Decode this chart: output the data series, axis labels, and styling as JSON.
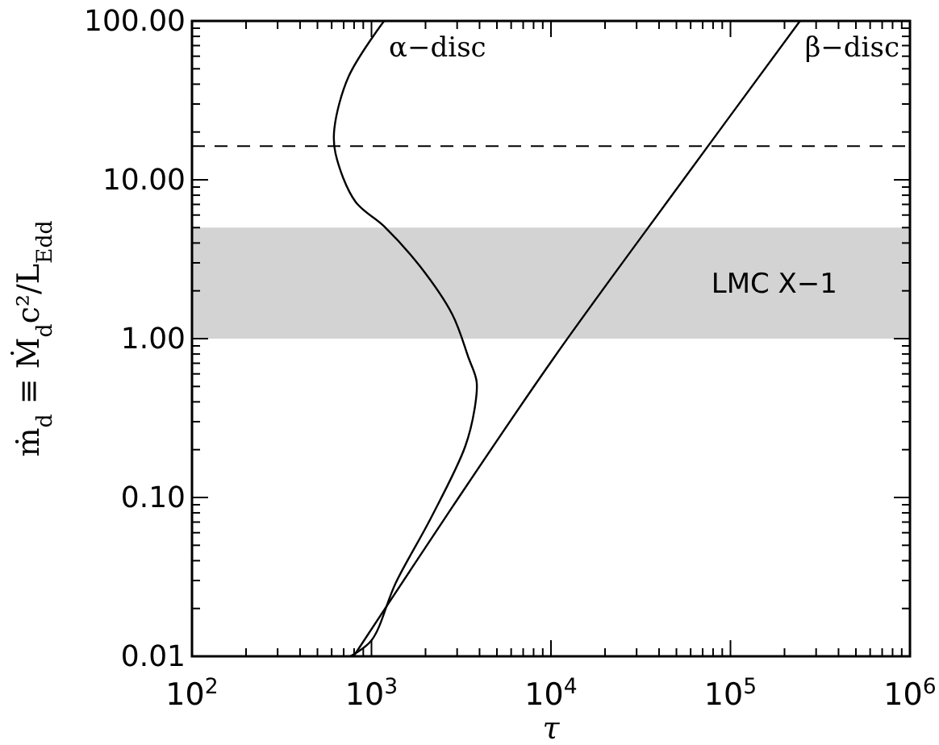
{
  "chart_data": {
    "type": "line",
    "xlabel": "τ",
    "ylabel": "ṁ$_{d}$ ≡ Ṁ$_{d}$c²/L$_{Edd}$",
    "log": "xy",
    "xlim": [
      100,
      1000000
    ],
    "ylim": [
      0.01,
      100
    ],
    "xticks": [
      {
        "value": 100,
        "label": "10$^{2}$"
      },
      {
        "value": 200,
        "label": null
      },
      {
        "value": 300,
        "label": null
      },
      {
        "value": 400,
        "label": null
      },
      {
        "value": 500,
        "label": null
      },
      {
        "value": 600,
        "label": null
      },
      {
        "value": 700,
        "label": null
      },
      {
        "value": 800,
        "label": null
      },
      {
        "value": 900,
        "label": null
      },
      {
        "value": 1000,
        "label": "10$^{3}$"
      },
      {
        "value": 2000,
        "label": null
      },
      {
        "value": 3000,
        "label": null
      },
      {
        "value": 4000,
        "label": null
      },
      {
        "value": 5000,
        "label": null
      },
      {
        "value": 6000,
        "label": null
      },
      {
        "value": 7000,
        "label": null
      },
      {
        "value": 8000,
        "label": null
      },
      {
        "value": 9000,
        "label": null
      },
      {
        "value": 10000,
        "label": "10$^{4}$"
      },
      {
        "value": 20000,
        "label": null
      },
      {
        "value": 30000,
        "label": null
      },
      {
        "value": 40000,
        "label": null
      },
      {
        "value": 50000,
        "label": null
      },
      {
        "value": 60000,
        "label": null
      },
      {
        "value": 70000,
        "label": null
      },
      {
        "value": 80000,
        "label": null
      },
      {
        "value": 90000,
        "label": null
      },
      {
        "value": 100000,
        "label": "10$^{5}$"
      },
      {
        "value": 200000,
        "label": null
      },
      {
        "value": 300000,
        "label": null
      },
      {
        "value": 400000,
        "label": null
      },
      {
        "value": 500000,
        "label": null
      },
      {
        "value": 600000,
        "label": null
      },
      {
        "value": 700000,
        "label": null
      },
      {
        "value": 800000,
        "label": null
      },
      {
        "value": 900000,
        "label": null
      },
      {
        "value": 1000000,
        "label": "10$^{6}$"
      }
    ],
    "yticks": [
      {
        "value": 0.01,
        "label": "0.01"
      },
      {
        "value": 0.02,
        "label": null
      },
      {
        "value": 0.03,
        "label": null
      },
      {
        "value": 0.04,
        "label": null
      },
      {
        "value": 0.05,
        "label": null
      },
      {
        "value": 0.06,
        "label": null
      },
      {
        "value": 0.07,
        "label": null
      },
      {
        "value": 0.08,
        "label": null
      },
      {
        "value": 0.09,
        "label": null
      },
      {
        "value": 0.1,
        "label": "0.10"
      },
      {
        "value": 0.2,
        "label": null
      },
      {
        "value": 0.3,
        "label": null
      },
      {
        "value": 0.4,
        "label": null
      },
      {
        "value": 0.5,
        "label": null
      },
      {
        "value": 0.6,
        "label": null
      },
      {
        "value": 0.7,
        "label": null
      },
      {
        "value": 0.8,
        "label": null
      },
      {
        "value": 0.9,
        "label": null
      },
      {
        "value": 1,
        "label": "1.00"
      },
      {
        "value": 2,
        "label": null
      },
      {
        "value": 3,
        "label": null
      },
      {
        "value": 4,
        "label": null
      },
      {
        "value": 5,
        "label": null
      },
      {
        "value": 6,
        "label": null
      },
      {
        "value": 7,
        "label": null
      },
      {
        "value": 8,
        "label": null
      },
      {
        "value": 9,
        "label": null
      },
      {
        "value": 10,
        "label": "10.00"
      },
      {
        "value": 20,
        "label": null
      },
      {
        "value": 30,
        "label": null
      },
      {
        "value": 40,
        "label": null
      },
      {
        "value": 50,
        "label": null
      },
      {
        "value": 60,
        "label": null
      },
      {
        "value": 70,
        "label": null
      },
      {
        "value": 80,
        "label": null
      },
      {
        "value": 90,
        "label": null
      },
      {
        "value": 100,
        "label": "100.00"
      }
    ],
    "series": [
      {
        "name": "α−disc",
        "color": "#000000",
        "x": [
          760,
          1000,
          1365,
          2140,
          3330,
          3780,
          3850,
          3470,
          2820,
          1860,
          1175,
          813,
          630,
          621,
          748,
          1175
        ],
        "values": [
          0.01,
          0.0126,
          0.029,
          0.074,
          0.21,
          0.38,
          0.54,
          0.76,
          1.42,
          2.86,
          5.1,
          7.3,
          14.7,
          21,
          45,
          100
        ]
      },
      {
        "name": "β−disc",
        "color": "#000000",
        "x": [
          795,
          2820,
          10400,
          51000,
          244000
        ],
        "values": [
          0.01,
          0.087,
          0.76,
          9.0,
          100
        ]
      }
    ],
    "ref_lines": [
      {
        "axis": "y",
        "value": 16.3,
        "line_style": "dashed",
        "color": "#000000"
      }
    ],
    "bands": [
      {
        "axis": "y",
        "from": 1,
        "to": 5,
        "label": "LMC X−1",
        "color": "#d3d3d3"
      }
    ]
  }
}
